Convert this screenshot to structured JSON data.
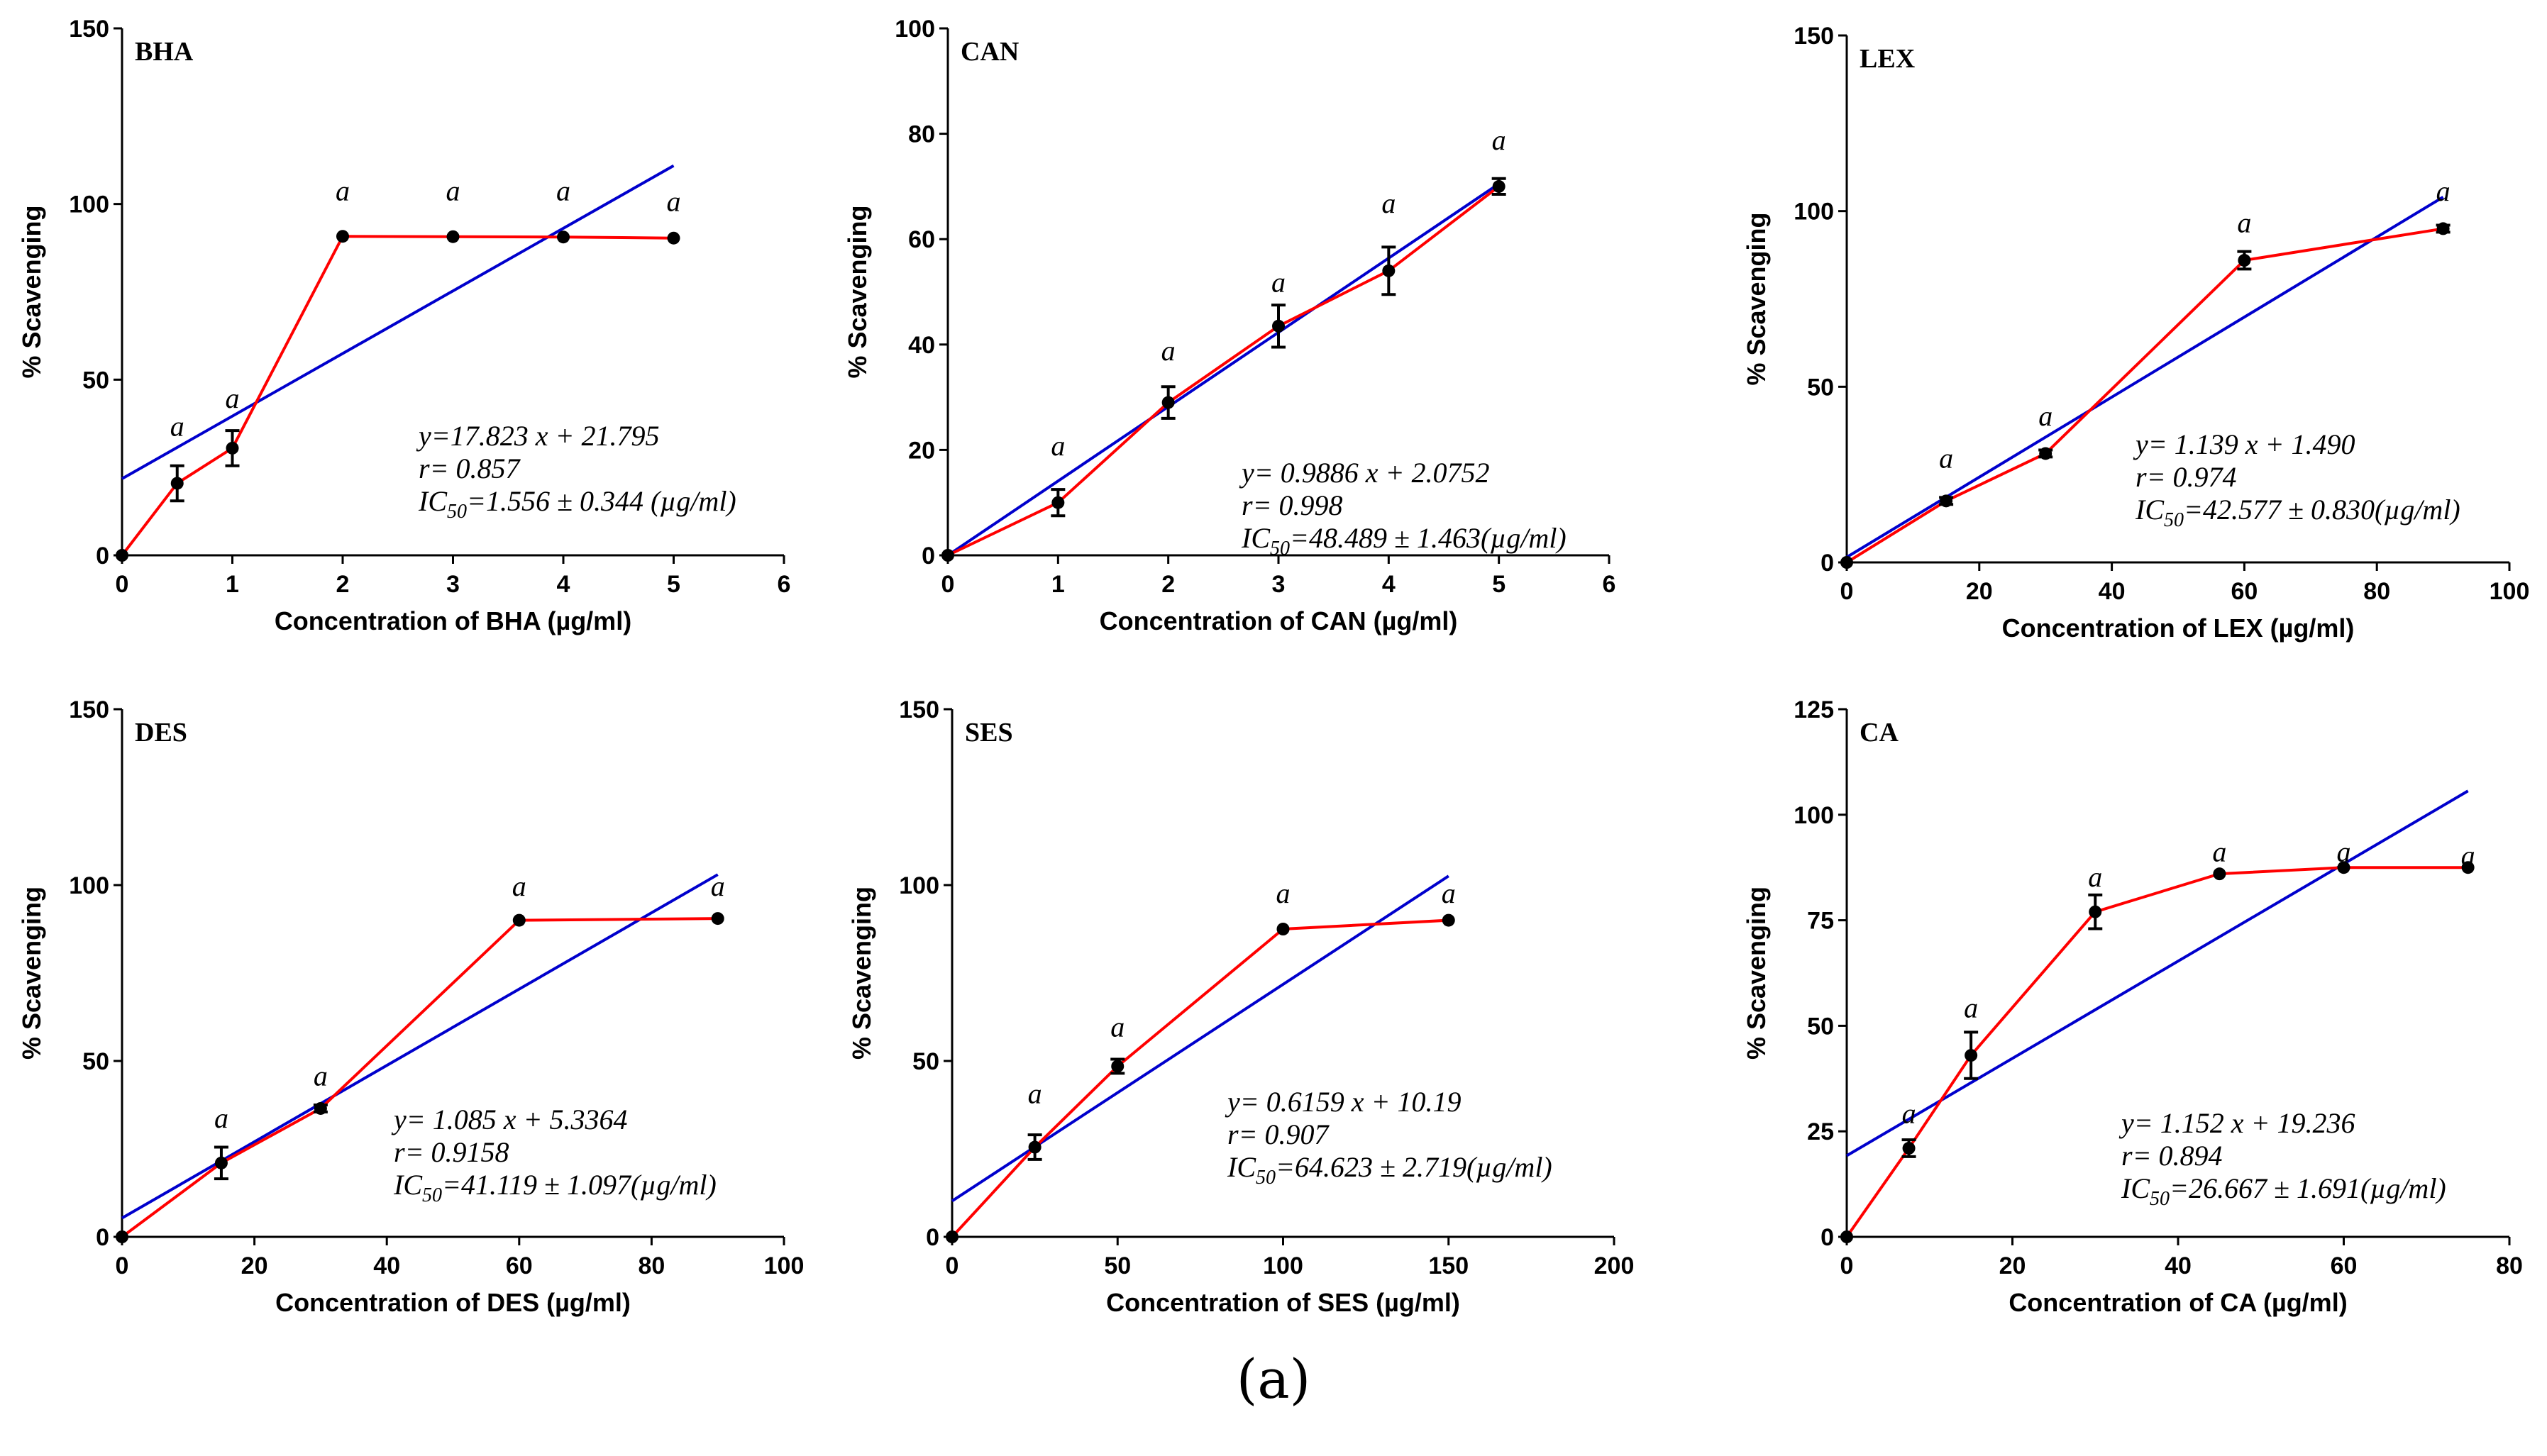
{
  "figure_label": "(a)",
  "chart_data": [
    {
      "type": "line",
      "title": "BHA",
      "xlabel": "Concentration of BHA (µg/ml)",
      "ylabel": "% Scavenging",
      "xlim": [
        0,
        6
      ],
      "ylim": [
        0,
        150
      ],
      "xticks": [
        0,
        1,
        2,
        3,
        4,
        5,
        6
      ],
      "yticks": [
        0,
        50,
        100,
        150
      ],
      "series": [
        {
          "x": [
            0,
            0.5,
            1,
            2,
            3,
            4,
            5
          ],
          "values": [
            0,
            20.5,
            30.5,
            90.8,
            90.7,
            90.6,
            90.3
          ],
          "err": [
            0,
            5,
            5,
            0,
            0,
            0,
            0
          ],
          "color": "#ff0000"
        }
      ],
      "fit": {
        "slope": 17.823,
        "intercept": 21.795,
        "x_range": [
          0,
          5
        ],
        "color": "#0000cc"
      },
      "significance": [
        {
          "x": 0.5,
          "y": 34,
          "label": "a"
        },
        {
          "x": 1,
          "y": 42,
          "label": "a"
        },
        {
          "x": 2,
          "y": 101,
          "label": "a"
        },
        {
          "x": 3,
          "y": 101,
          "label": "a"
        },
        {
          "x": 4,
          "y": 101,
          "label": "a"
        },
        {
          "x": 5,
          "y": 98,
          "label": "a"
        }
      ],
      "equation": {
        "line1": "y=17.823 x + 21.795",
        "line2": "r= 0.857",
        "ic_prefix": "IC",
        "ic_sub": "50",
        "ic_value": "=1.556 ± 0.344 (µg/ml)"
      }
    },
    {
      "type": "line",
      "title": "CAN",
      "xlabel": "Concentration of  CAN (µg/ml)",
      "ylabel": "% Scavenging",
      "xlim": [
        0,
        6
      ],
      "ylim": [
        0,
        100
      ],
      "xticks": [
        0,
        1,
        2,
        3,
        4,
        5,
        6
      ],
      "yticks": [
        0,
        20,
        40,
        60,
        80,
        100
      ],
      "series": [
        {
          "x": [
            0,
            1,
            2,
            3,
            4,
            5
          ],
          "values": [
            0,
            10,
            29,
            43.5,
            54,
            70
          ],
          "err": [
            0,
            2.5,
            3,
            4,
            4.5,
            1.5
          ],
          "color": "#ff0000"
        }
      ],
      "fit": {
        "slope": 0.9886,
        "intercept": 2.0752,
        "x_range": [
          0,
          5
        ],
        "unit_scale": 14.32,
        "line_pts": [
          [
            0,
            0
          ],
          [
            5,
            70.5
          ]
        ],
        "color": "#0000cc"
      },
      "significance": [
        {
          "x": 1,
          "y": 19,
          "label": "a"
        },
        {
          "x": 2,
          "y": 37,
          "label": "a"
        },
        {
          "x": 3,
          "y": 50,
          "label": "a"
        },
        {
          "x": 4,
          "y": 65,
          "label": "a"
        },
        {
          "x": 5,
          "y": 77,
          "label": "a"
        }
      ],
      "equation": {
        "line1": "y= 0.9886 x + 2.0752",
        "line2": "r= 0.998",
        "ic_prefix": "IC",
        "ic_sub": "50",
        "ic_value": "=48.489 ± 1.463(µg/ml)"
      }
    },
    {
      "type": "line",
      "title": "LEX",
      "xlabel": "Concentration of  LEX (µg/ml)",
      "ylabel": "% Scavenging",
      "xlim": [
        0,
        100
      ],
      "ylim": [
        0,
        150
      ],
      "xticks": [
        0,
        20,
        40,
        60,
        80,
        100
      ],
      "yticks": [
        0,
        50,
        100,
        150
      ],
      "series": [
        {
          "x": [
            0,
            15,
            30,
            60,
            90
          ],
          "values": [
            0,
            17.5,
            31,
            86,
            95
          ],
          "err": [
            0,
            1,
            1,
            2.5,
            1
          ],
          "color": "#ff0000"
        }
      ],
      "fit": {
        "slope": 1.139,
        "intercept": 1.49,
        "x_range": [
          0,
          90
        ],
        "color": "#0000cc"
      },
      "significance": [
        {
          "x": 15,
          "y": 27,
          "label": "a"
        },
        {
          "x": 30,
          "y": 39,
          "label": "a"
        },
        {
          "x": 60,
          "y": 94,
          "label": "a"
        },
        {
          "x": 90,
          "y": 103,
          "label": "a"
        }
      ],
      "equation": {
        "line1": "y= 1.139 x + 1.490",
        "line2": "r= 0.974",
        "ic_prefix": "IC",
        "ic_sub": "50",
        "ic_value": "=42.577 ± 0.830(µg/ml)"
      }
    },
    {
      "type": "line",
      "title": "DES",
      "xlabel": "Concentration of  DES (µg/ml)",
      "ylabel": "% Scavenging",
      "xlim": [
        0,
        100
      ],
      "ylim": [
        0,
        150
      ],
      "xticks": [
        0,
        20,
        40,
        60,
        80,
        100
      ],
      "yticks": [
        0,
        50,
        100,
        150
      ],
      "series": [
        {
          "x": [
            0,
            15,
            30,
            60,
            90
          ],
          "values": [
            0,
            21,
            36.5,
            90,
            90.5
          ],
          "err": [
            0,
            4.5,
            1,
            0,
            0
          ],
          "color": "#ff0000"
        }
      ],
      "fit": {
        "slope": 1.085,
        "intercept": 5.3364,
        "x_range": [
          0,
          90
        ],
        "color": "#0000cc"
      },
      "significance": [
        {
          "x": 15,
          "y": 31,
          "label": "a"
        },
        {
          "x": 30,
          "y": 43,
          "label": "a"
        },
        {
          "x": 60,
          "y": 97,
          "label": "a"
        },
        {
          "x": 90,
          "y": 97,
          "label": "a"
        }
      ],
      "equation": {
        "line1": "y= 1.085 x + 5.3364",
        "line2": "r= 0.9158",
        "ic_prefix": "IC",
        "ic_sub": "50",
        "ic_value": "=41.119 ± 1.097(µg/ml)"
      }
    },
    {
      "type": "line",
      "title": "SES",
      "xlabel": "Concentration of  SES (µg/ml)",
      "ylabel": "% Scavenging",
      "xlim": [
        0,
        200
      ],
      "ylim": [
        0,
        150
      ],
      "xticks": [
        0,
        50,
        100,
        150,
        200
      ],
      "yticks": [
        0,
        50,
        100,
        150
      ],
      "series": [
        {
          "x": [
            0,
            25,
            50,
            100,
            150
          ],
          "values": [
            0,
            25.5,
            48.5,
            87.5,
            90
          ],
          "err": [
            0,
            3.5,
            2,
            0,
            0
          ],
          "color": "#ff0000"
        }
      ],
      "fit": {
        "slope": 0.6159,
        "intercept": 10.19,
        "x_range": [
          0,
          150
        ],
        "color": "#0000cc"
      },
      "significance": [
        {
          "x": 25,
          "y": 38,
          "label": "a"
        },
        {
          "x": 50,
          "y": 57,
          "label": "a"
        },
        {
          "x": 100,
          "y": 95,
          "label": "a"
        },
        {
          "x": 150,
          "y": 95,
          "label": "a"
        }
      ],
      "equation": {
        "line1": "y= 0.6159 x + 10.19",
        "line2": "r= 0.907",
        "ic_prefix": "IC",
        "ic_sub": "50",
        "ic_value": "=64.623 ± 2.719(µg/ml)"
      }
    },
    {
      "type": "line",
      "title": "CA",
      "xlabel": "Concentration of CA (µg/ml)",
      "ylabel": "% Scavenging",
      "xlim": [
        0,
        80
      ],
      "ylim": [
        0,
        125
      ],
      "xticks": [
        0,
        20,
        40,
        60,
        80
      ],
      "yticks": [
        0,
        25,
        50,
        75,
        100,
        125
      ],
      "series": [
        {
          "x": [
            0,
            7.5,
            15,
            30,
            45,
            60,
            75
          ],
          "values": [
            0,
            21,
            43,
            77,
            86,
            87.5,
            87.5
          ],
          "err": [
            0,
            2,
            5.5,
            4,
            0,
            0,
            0
          ],
          "color": "#ff0000"
        }
      ],
      "fit": {
        "slope": 1.152,
        "intercept": 19.236,
        "x_range": [
          0,
          75
        ],
        "color": "#0000cc"
      },
      "significance": [
        {
          "x": 7.5,
          "y": 27,
          "label": "a"
        },
        {
          "x": 15,
          "y": 52,
          "label": "a"
        },
        {
          "x": 30,
          "y": 83,
          "label": "a"
        },
        {
          "x": 45,
          "y": 89,
          "label": "a"
        },
        {
          "x": 60,
          "y": 89,
          "label": "a"
        },
        {
          "x": 75,
          "y": 88,
          "label": "a"
        }
      ],
      "equation": {
        "line1": "y= 1.152 x + 19.236",
        "line2": "r= 0.894",
        "ic_prefix": "IC",
        "ic_sub": "50",
        "ic_value": "=26.667 ± 1.691(µg/ml)"
      }
    }
  ]
}
